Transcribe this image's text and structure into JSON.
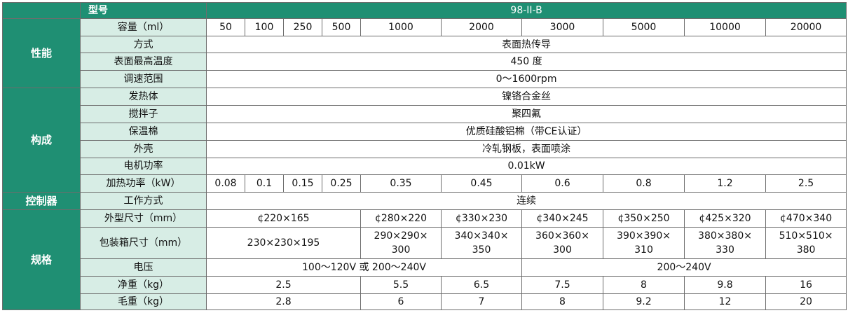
{
  "header": {
    "model_label": "型号",
    "model_value": "98-II-B"
  },
  "perf": {
    "category": "性能",
    "capacity_label": "容量（ml）",
    "capacities": [
      "50",
      "100",
      "250",
      "500",
      "1000",
      "2000",
      "3000",
      "5000",
      "10000",
      "20000"
    ],
    "method_label": "方式",
    "method_value": "表面热传导",
    "maxtemp_label": "表面最高温度",
    "maxtemp_value": "450 度",
    "speed_label": "调速范围",
    "speed_value": "0～1600rpm"
  },
  "comp": {
    "category": "构成",
    "heater_label": "发热体",
    "heater_value": "镍铬合金丝",
    "stirrer_label": "搅拌子",
    "stirrer_value": "聚四氟",
    "insul_label": "保温棉",
    "insul_value": "优质硅酸铝棉（带CE认证）",
    "shell_label": "外壳",
    "shell_value": "冷轧钢板，表面喷涂",
    "motor_label": "电机功率",
    "motor_value": "0.01kW",
    "heatpow_label": "加热功率（kW）",
    "heatpows": [
      "0.08",
      "0.1",
      "0.15",
      "0.25",
      "0.35",
      "0.45",
      "0.6",
      "0.8",
      "1.2",
      "2.5"
    ]
  },
  "ctrl": {
    "category": "控制器",
    "mode_label": "工作方式",
    "mode_value": "连续"
  },
  "spec": {
    "category": "规格",
    "outer_label": "外型尺寸（mm）",
    "outer": [
      "¢220×165",
      "¢280×220",
      "¢330×230",
      "¢340×245",
      "¢350×250",
      "¢425×320",
      "¢470×340"
    ],
    "box_label": "包装箱尺寸（mm）",
    "box": [
      {
        "l1": "230×230×195",
        "l2": ""
      },
      {
        "l1": "290×290×",
        "l2": "300"
      },
      {
        "l1": "340×340×",
        "l2": "350"
      },
      {
        "l1": "360×360×",
        "l2": "300"
      },
      {
        "l1": "390×390×",
        "l2": "310"
      },
      {
        "l1": "380×380×",
        "l2": "330"
      },
      {
        "l1": "510×510×",
        "l2": "380"
      }
    ],
    "volt_label": "电压",
    "volt": [
      "100～120V 或 200～240V",
      "200～240V"
    ],
    "net_label": "净重（kg）",
    "net": [
      "2.5",
      "5.5",
      "6.5",
      "7.5",
      "8",
      "9.8",
      "16"
    ],
    "gross_label": "毛重（kg）",
    "gross": [
      "2.8",
      "6",
      "7",
      "8",
      "9.2",
      "12",
      "20"
    ]
  },
  "colors": {
    "header_green": "#1f8f73",
    "label_bg": "#d7ede5"
  }
}
